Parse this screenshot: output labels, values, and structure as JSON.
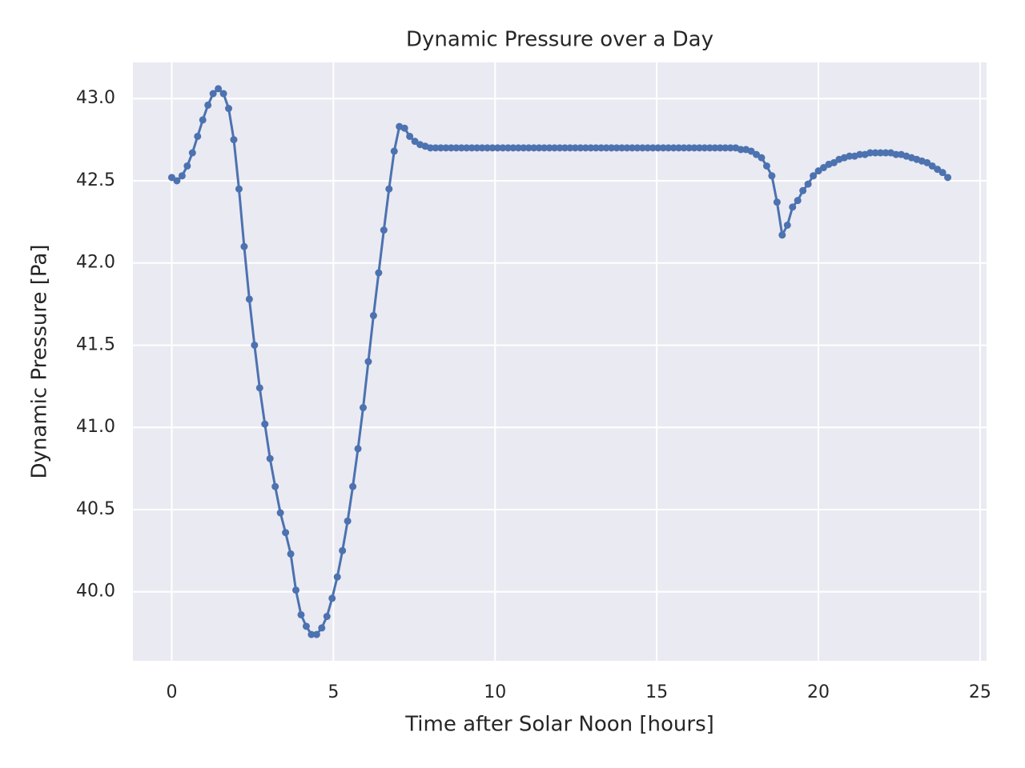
{
  "chart_data": {
    "type": "line",
    "title": "Dynamic Pressure over a Day",
    "xlabel": "Time after Solar Noon [hours]",
    "ylabel": "Dynamic Pressure [Pa]",
    "x": [
      0,
      0.16,
      0.32,
      0.48,
      0.64,
      0.8,
      0.96,
      1.12,
      1.28,
      1.44,
      1.6,
      1.76,
      1.92,
      2.08,
      2.24,
      2.4,
      2.56,
      2.72,
      2.88,
      3.04,
      3.2,
      3.36,
      3.52,
      3.68,
      3.84,
      4,
      4.16,
      4.32,
      4.48,
      4.64,
      4.8,
      4.96,
      5.12,
      5.28,
      5.44,
      5.6,
      5.76,
      5.92,
      6.08,
      6.24,
      6.4,
      6.56,
      6.72,
      6.88,
      7.04,
      7.2,
      7.36,
      7.52,
      7.68,
      7.84,
      8,
      8.16,
      8.32,
      8.48,
      8.64,
      8.8,
      8.96,
      9.12,
      9.28,
      9.44,
      9.6,
      9.76,
      9.92,
      10.08,
      10.24,
      10.4,
      10.56,
      10.72,
      10.88,
      11.04,
      11.2,
      11.36,
      11.52,
      11.68,
      11.84,
      12,
      12.16,
      12.32,
      12.48,
      12.64,
      12.8,
      12.96,
      13.12,
      13.28,
      13.44,
      13.6,
      13.76,
      13.92,
      14.08,
      14.24,
      14.4,
      14.56,
      14.72,
      14.88,
      15.04,
      15.2,
      15.36,
      15.52,
      15.68,
      15.84,
      16,
      16.16,
      16.32,
      16.48,
      16.64,
      16.8,
      16.96,
      17.12,
      17.28,
      17.44,
      17.6,
      17.76,
      17.92,
      18.08,
      18.24,
      18.4,
      18.56,
      18.72,
      18.88,
      19.04,
      19.2,
      19.36,
      19.52,
      19.68,
      19.84,
      20,
      20.16,
      20.32,
      20.48,
      20.64,
      20.8,
      20.96,
      21.12,
      21.28,
      21.44,
      21.6,
      21.76,
      21.92,
      22.08,
      22.24,
      22.4,
      22.56,
      22.72,
      22.88,
      23.04,
      23.2,
      23.36,
      23.52,
      23.68,
      23.84,
      24
    ],
    "series": [
      {
        "color": "#4c72b0",
        "values": [
          42.52,
          42.5,
          42.53,
          42.59,
          42.67,
          42.77,
          42.87,
          42.96,
          43.03,
          43.06,
          43.03,
          42.94,
          42.75,
          42.45,
          42.1,
          41.78,
          41.5,
          41.24,
          41.02,
          40.81,
          40.64,
          40.48,
          40.36,
          40.23,
          40.01,
          39.86,
          39.79,
          39.74,
          39.74,
          39.78,
          39.85,
          39.96,
          40.09,
          40.25,
          40.43,
          40.64,
          40.87,
          41.12,
          41.4,
          41.68,
          41.94,
          42.2,
          42.45,
          42.68,
          42.83,
          42.82,
          42.77,
          42.74,
          42.72,
          42.71,
          42.7,
          42.7,
          42.7,
          42.7,
          42.7,
          42.7,
          42.7,
          42.7,
          42.7,
          42.7,
          42.7,
          42.7,
          42.7,
          42.7,
          42.7,
          42.7,
          42.7,
          42.7,
          42.7,
          42.7,
          42.7,
          42.7,
          42.7,
          42.7,
          42.7,
          42.7,
          42.7,
          42.7,
          42.7,
          42.7,
          42.7,
          42.7,
          42.7,
          42.7,
          42.7,
          42.7,
          42.7,
          42.7,
          42.7,
          42.7,
          42.7,
          42.7,
          42.7,
          42.7,
          42.7,
          42.7,
          42.7,
          42.7,
          42.7,
          42.7,
          42.7,
          42.7,
          42.7,
          42.7,
          42.7,
          42.7,
          42.7,
          42.7,
          42.7,
          42.7,
          42.69,
          42.69,
          42.68,
          42.66,
          42.64,
          42.59,
          42.53,
          42.37,
          42.17,
          42.23,
          42.34,
          42.38,
          42.44,
          42.48,
          42.53,
          42.56,
          42.58,
          42.6,
          42.61,
          42.63,
          42.64,
          42.65,
          42.65,
          42.66,
          42.66,
          42.67,
          42.67,
          42.67,
          42.67,
          42.67,
          42.66,
          42.66,
          42.65,
          42.64,
          42.63,
          42.62,
          42.61,
          42.59,
          42.57,
          42.55,
          42.52
        ]
      }
    ],
    "xlim": [
      -1.2,
      25.2
    ],
    "xticks": [
      0,
      5,
      10,
      15,
      20,
      25
    ],
    "ylim": [
      39.58,
      43.22
    ],
    "yticks": [
      {
        "value": 40,
        "label": "40.0"
      },
      {
        "value": 40.5,
        "label": "40.5"
      },
      {
        "value": 41,
        "label": "41.0"
      },
      {
        "value": 41.5,
        "label": "41.5"
      },
      {
        "value": 42,
        "label": "42.0"
      },
      {
        "value": 42.5,
        "label": "42.5"
      },
      {
        "value": 43,
        "label": "43.0"
      }
    ],
    "grid": true,
    "background": "#eaeaf2"
  }
}
